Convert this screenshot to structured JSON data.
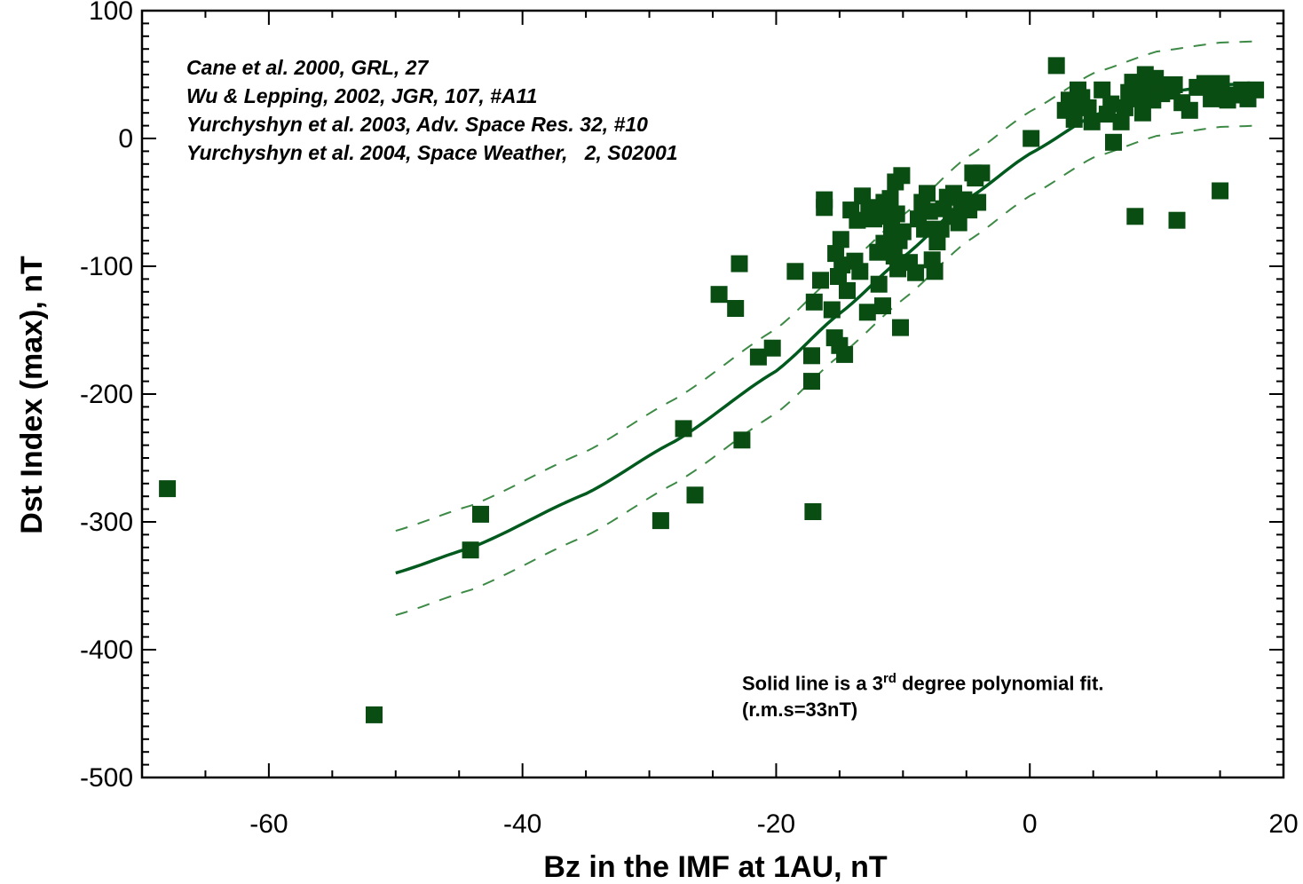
{
  "chart_data": {
    "type": "scatter",
    "title": "",
    "xlabel": "Bz in the IMF at 1AU, nT",
    "ylabel": "Dst Index (max), nT",
    "xlim": [
      -70,
      20
    ],
    "ylim": [
      -500,
      100
    ],
    "xticks": [
      -60,
      -40,
      -20,
      0,
      20
    ],
    "yticks": [
      100,
      0,
      -100,
      -200,
      -300,
      -400,
      -500
    ],
    "references": [
      "Cane et al. 2000, GRL, 27",
      "Wu & Lepping, 2002, JGR, 107, #A11",
      "Yurchyshyn et al. 2003, Adv. Space Res. 32, #10",
      "Yurchyshyn et al. 2004, Space Weather,   2, S02001"
    ],
    "note": {
      "line1_pre": "Solid line is a 3",
      "line1_sup": "rd",
      "line1_post": " degree polynomial fit.",
      "line2": "(r.m.s=33nT)"
    },
    "fit": {
      "type": "polynomial-3",
      "x_range": [
        -50,
        18
      ],
      "y_points": [
        [
          -50,
          -340
        ],
        [
          -44,
          -320
        ],
        [
          -35,
          -278
        ],
        [
          -28,
          -237
        ],
        [
          -20,
          -182
        ],
        [
          -15,
          -137
        ],
        [
          -10,
          -93
        ],
        [
          -5,
          -48
        ],
        [
          0,
          -12
        ],
        [
          5,
          18
        ],
        [
          10,
          35
        ],
        [
          15,
          42
        ],
        [
          18,
          43
        ]
      ],
      "band": 33,
      "color": "#005a1e"
    },
    "marker_color": "#0a4d12",
    "points": [
      [
        -68,
        -274
      ],
      [
        -51.7,
        -451
      ],
      [
        -44.1,
        -322
      ],
      [
        -43.3,
        -294
      ],
      [
        -29.1,
        -299
      ],
      [
        -27.3,
        -227
      ],
      [
        -26.4,
        -279
      ],
      [
        -24.5,
        -122
      ],
      [
        -23.2,
        -133
      ],
      [
        -22.9,
        -98
      ],
      [
        -22.7,
        -236
      ],
      [
        -21.4,
        -171
      ],
      [
        -20.3,
        -164
      ],
      [
        -18.5,
        -104
      ],
      [
        -17.2,
        -170
      ],
      [
        -17.2,
        -190
      ],
      [
        -17.1,
        -292
      ],
      [
        -17.0,
        -128
      ],
      [
        -16.5,
        -111
      ],
      [
        -16.2,
        -48
      ],
      [
        -16.2,
        -54
      ],
      [
        -15.6,
        -134
      ],
      [
        -15.4,
        -156
      ],
      [
        -15.3,
        -90
      ],
      [
        -15.1,
        -108
      ],
      [
        -15.0,
        -162
      ],
      [
        -14.9,
        -79
      ],
      [
        -14.8,
        -99
      ],
      [
        -14.6,
        -169
      ],
      [
        -14.4,
        -119
      ],
      [
        -14.1,
        -56
      ],
      [
        -13.8,
        -96
      ],
      [
        -13.6,
        -64
      ],
      [
        -13.4,
        -104
      ],
      [
        -13.2,
        -45
      ],
      [
        -12.8,
        -136
      ],
      [
        -12.7,
        -54
      ],
      [
        -12.3,
        -63
      ],
      [
        -12.0,
        -89
      ],
      [
        -11.9,
        -114
      ],
      [
        -11.6,
        -131
      ],
      [
        -11.5,
        -50
      ],
      [
        -11.5,
        -82
      ],
      [
        -11.3,
        -61
      ],
      [
        -11.0,
        -47
      ],
      [
        -10.9,
        -70
      ],
      [
        -10.7,
        -92
      ],
      [
        -10.6,
        -34
      ],
      [
        -10.5,
        -59
      ],
      [
        -10.4,
        -102
      ],
      [
        -10.3,
        -80
      ],
      [
        -10.2,
        -148
      ],
      [
        -10.1,
        -29
      ],
      [
        -10.0,
        -73
      ],
      [
        -9.5,
        -97
      ],
      [
        -9.0,
        -105
      ],
      [
        -8.8,
        -63
      ],
      [
        -8.5,
        -50
      ],
      [
        -8.3,
        -71
      ],
      [
        -8.1,
        -43
      ],
      [
        -7.9,
        -57
      ],
      [
        -7.7,
        -95
      ],
      [
        -7.5,
        -104
      ],
      [
        -7.3,
        -81
      ],
      [
        -7.0,
        -71
      ],
      [
        -6.8,
        -55
      ],
      [
        -6.5,
        -46
      ],
      [
        -6.2,
        -61
      ],
      [
        -6.0,
        -43
      ],
      [
        -5.6,
        -66
      ],
      [
        -5.4,
        -54
      ],
      [
        -5.2,
        -48
      ],
      [
        -4.8,
        -56
      ],
      [
        -4.5,
        -27
      ],
      [
        -4.3,
        -31
      ],
      [
        -4.1,
        -50
      ],
      [
        -3.8,
        -27
      ],
      [
        0.1,
        0
      ],
      [
        2.1,
        57
      ],
      [
        2.8,
        22
      ],
      [
        3.1,
        30
      ],
      [
        3.3,
        26
      ],
      [
        3.5,
        15
      ],
      [
        3.8,
        38
      ],
      [
        4.1,
        32
      ],
      [
        4.6,
        24
      ],
      [
        4.9,
        13
      ],
      [
        5.7,
        38
      ],
      [
        6.1,
        19
      ],
      [
        6.4,
        27
      ],
      [
        6.6,
        -3
      ],
      [
        7.2,
        13
      ],
      [
        7.5,
        24
      ],
      [
        7.8,
        36
      ],
      [
        8.1,
        44
      ],
      [
        8.6,
        31
      ],
      [
        8.9,
        20
      ],
      [
        9.1,
        50
      ],
      [
        9.3,
        41
      ],
      [
        9.7,
        30
      ],
      [
        9.9,
        47
      ],
      [
        10.4,
        35
      ],
      [
        10.7,
        42
      ],
      [
        11.2,
        37
      ],
      [
        11.4,
        42
      ],
      [
        12.0,
        28
      ],
      [
        12.6,
        22
      ],
      [
        13.2,
        40
      ],
      [
        13.8,
        43
      ],
      [
        14.3,
        31
      ],
      [
        14.6,
        37
      ],
      [
        15.1,
        43
      ],
      [
        15.6,
        30
      ],
      [
        16.2,
        34
      ],
      [
        16.7,
        38
      ],
      [
        17.2,
        31
      ],
      [
        17.8,
        38
      ],
      [
        8.3,
        -61
      ],
      [
        11.6,
        -64
      ],
      [
        15.0,
        -41
      ]
    ]
  }
}
